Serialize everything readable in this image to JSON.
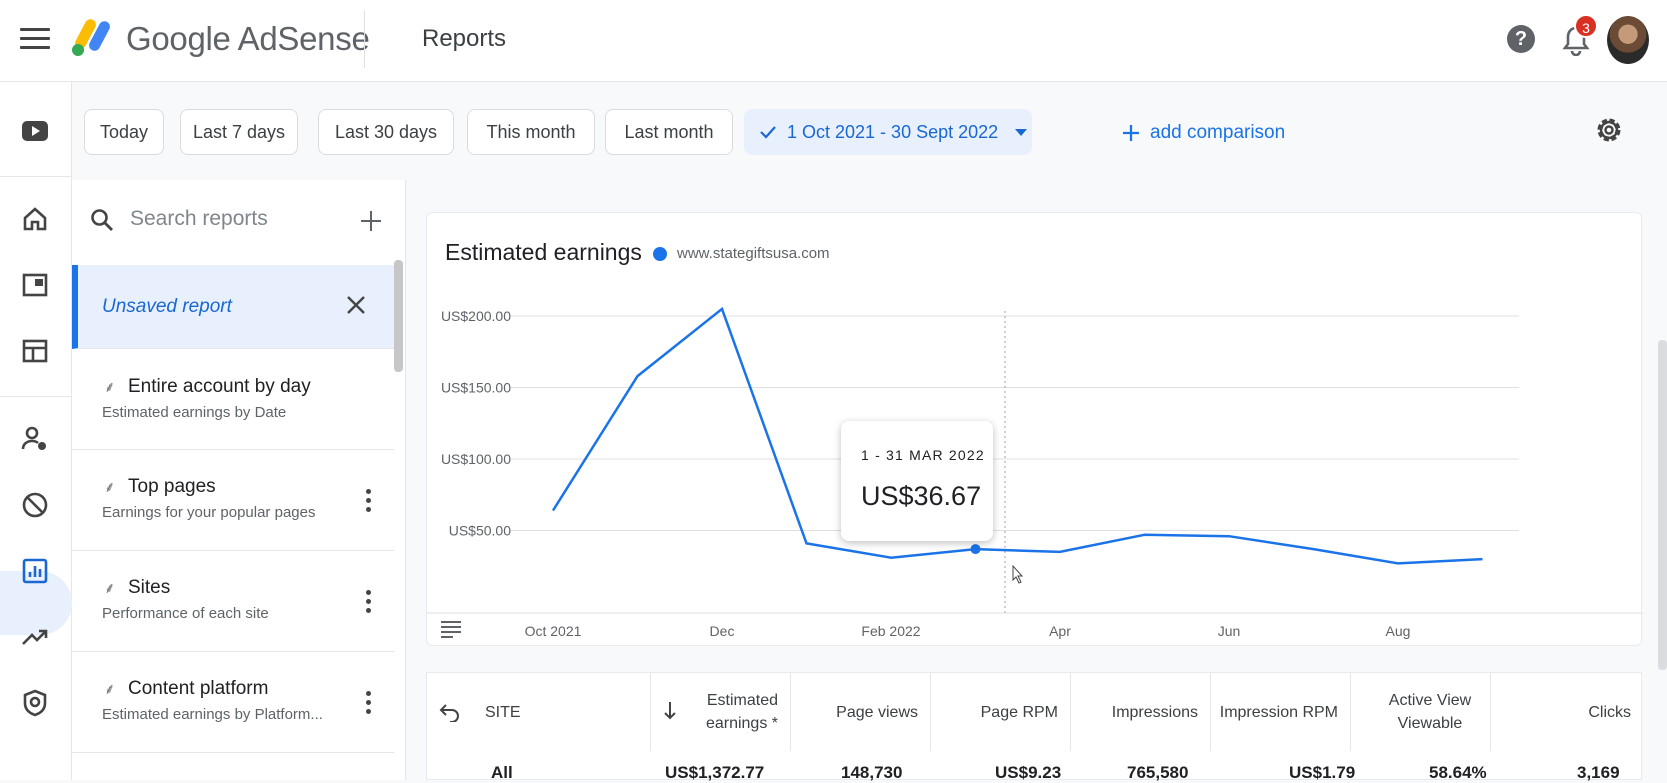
{
  "header": {
    "brand": "Google AdSense",
    "page_title": "Reports",
    "notification_count": "3",
    "help_label": "?"
  },
  "filters": {
    "chips": [
      "Today",
      "Last 7 days",
      "Last 30 days",
      "This month",
      "Last month"
    ],
    "selected_range": "1 Oct 2021 - 30 Sept 2022",
    "add_comparison": "add comparison"
  },
  "left_panel": {
    "search_placeholder": "Search reports",
    "unsaved_report": "Unsaved report",
    "reports": [
      {
        "title": "Entire account by day",
        "subtitle": "Estimated earnings by Date"
      },
      {
        "title": "Top pages",
        "subtitle": "Earnings for your popular pages"
      },
      {
        "title": "Sites",
        "subtitle": "Performance of each site"
      },
      {
        "title": "Content platform",
        "subtitle": "Estimated earnings by Platform..."
      }
    ]
  },
  "chart": {
    "title": "Estimated earnings",
    "legend": "www.stategiftsusa.com",
    "tooltip_date": "1 - 31 MAR 2022",
    "tooltip_value": "US$36.67",
    "y_ticks": [
      "US$200.00",
      "US$150.00",
      "US$100.00",
      "US$50.00"
    ],
    "x_ticks": [
      "Oct 2021",
      "Dec",
      "Feb 2022",
      "Apr",
      "Jun",
      "Aug"
    ]
  },
  "chart_data": {
    "type": "line",
    "series": [
      {
        "name": "www.stategiftsusa.com",
        "values": [
          64,
          158,
          205,
          41,
          31,
          37,
          35,
          47,
          46,
          37,
          27,
          30
        ]
      }
    ],
    "categories": [
      "Oct 2021",
      "Nov 2021",
      "Dec 2021",
      "Jan 2022",
      "Feb 2022",
      "Mar 2022",
      "Apr 2022",
      "May 2022",
      "Jun 2022",
      "Jul 2022",
      "Aug 2022",
      "Sep 2022"
    ],
    "ylim": [
      0,
      225
    ],
    "title": "Estimated earnings",
    "grid": true
  },
  "table": {
    "headers": {
      "site": "SITE",
      "earnings": "Estimated earnings *",
      "page_views": "Page views",
      "page_rpm": "Page RPM",
      "impressions": "Impressions",
      "impression_rpm": "Impression RPM",
      "active_view": "Active View Viewable",
      "clicks": "Clicks"
    },
    "row_all": {
      "site": "All",
      "earnings": "US$1,372.77",
      "page_views": "148,730",
      "page_rpm": "US$9.23",
      "impressions": "765,580",
      "impression_rpm": "US$1.79",
      "active_view": "58.64%",
      "clicks": "3,169"
    }
  },
  "colors": {
    "accent": "#1a73e8",
    "selected_bg": "#e8f0fe",
    "badge": "#d93025"
  }
}
